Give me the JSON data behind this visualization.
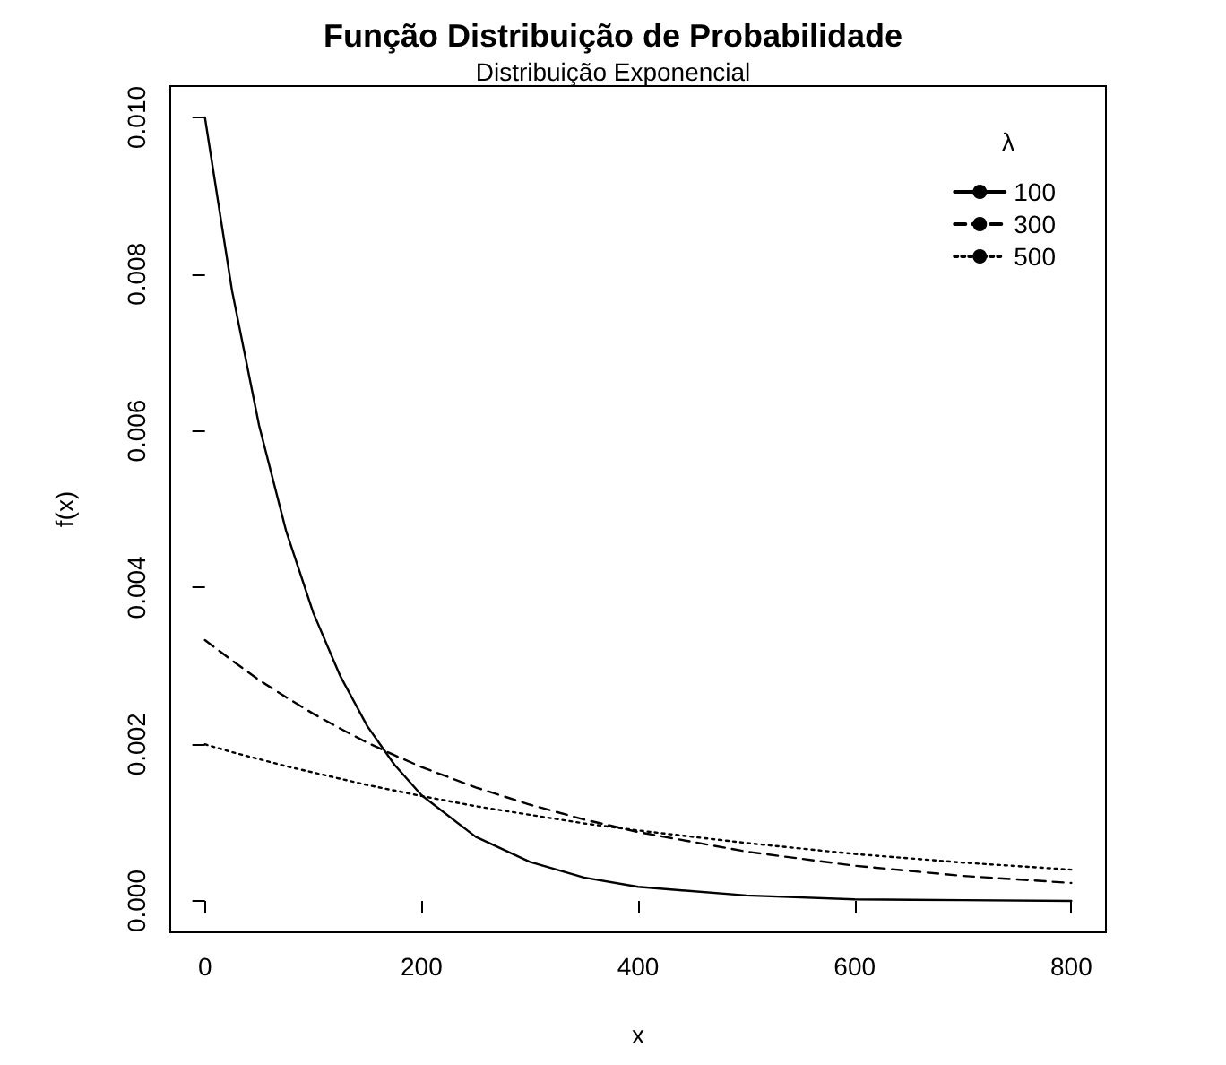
{
  "chart_data": {
    "type": "line",
    "title": "Função Distribuição de Probabilidade",
    "subtitle": "Distribuição Exponencial",
    "xlabel": "x",
    "ylabel": "f(x)",
    "legend_title": "λ",
    "x": [
      0,
      25,
      50,
      75,
      100,
      125,
      150,
      175,
      200,
      250,
      300,
      350,
      400,
      500,
      600,
      700,
      800
    ],
    "series": [
      {
        "name": "100",
        "color": "#000000",
        "line_style": "solid",
        "values": [
          0.01,
          0.00779,
          0.00607,
          0.00472,
          0.00368,
          0.00287,
          0.00223,
          0.00174,
          0.00135,
          0.00082,
          0.0005,
          0.0003,
          0.00018,
          7e-05,
          2e-05,
          1e-05,
          0.0
        ]
      },
      {
        "name": "300",
        "color": "#000000",
        "line_style": "dashed",
        "values": [
          0.00333,
          0.00307,
          0.00282,
          0.0026,
          0.00239,
          0.0022,
          0.00202,
          0.00186,
          0.00171,
          0.00145,
          0.00123,
          0.00104,
          0.00088,
          0.00063,
          0.00045,
          0.00032,
          0.00023
        ]
      },
      {
        "name": "500",
        "color": "#000000",
        "line_style": "dotted",
        "values": [
          0.002,
          0.0019,
          0.00181,
          0.00172,
          0.00164,
          0.00156,
          0.00148,
          0.00141,
          0.00134,
          0.00121,
          0.0011,
          0.00099,
          0.0009,
          0.00074,
          0.0006,
          0.00049,
          0.0004
        ]
      }
    ],
    "xlim": [
      -32,
      832
    ],
    "xticks": [
      0,
      200,
      400,
      600,
      800
    ],
    "ylim": [
      -0.0004,
      0.0104
    ],
    "yticks": [
      {
        "value": 0,
        "label": "0.000"
      },
      {
        "value": 0.002,
        "label": "0.002"
      },
      {
        "value": 0.004,
        "label": "0.004"
      },
      {
        "value": 0.006,
        "label": "0.006"
      },
      {
        "value": 0.008,
        "label": "0.008"
      },
      {
        "value": 0.01,
        "label": "0.010"
      }
    ],
    "grid": false,
    "legend": "top right",
    "marker": "none"
  }
}
